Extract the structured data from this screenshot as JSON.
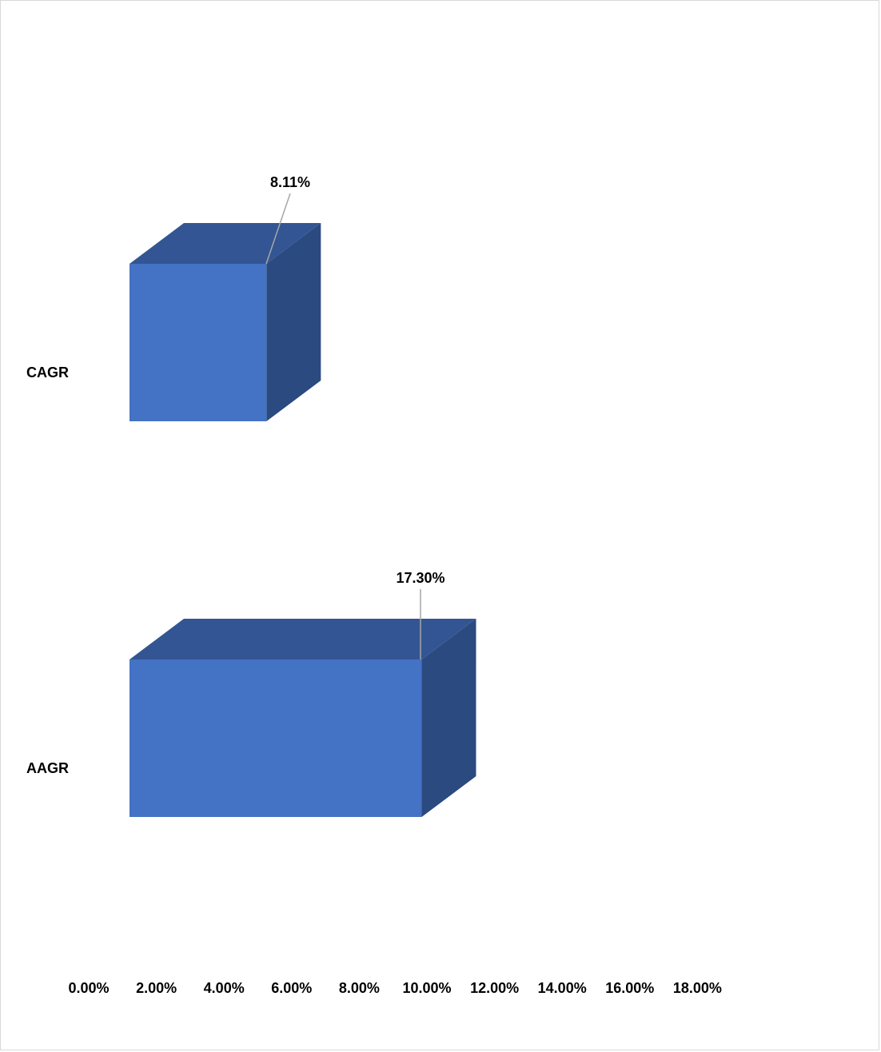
{
  "chart_data": {
    "type": "bar",
    "orientation": "horizontal",
    "three_d": true,
    "categories": [
      "CAGR",
      "AAGR"
    ],
    "values": [
      8.11,
      17.3
    ],
    "data_labels": [
      "8.11%",
      "17.30%"
    ],
    "xlim": [
      0,
      18
    ],
    "xticks": [
      0,
      2,
      4,
      6,
      8,
      10,
      12,
      14,
      16,
      18
    ],
    "xtick_labels": [
      "0.00%",
      "2.00%",
      "4.00%",
      "6.00%",
      "8.00%",
      "10.00%",
      "12.00%",
      "14.00%",
      "16.00%",
      "18.00%"
    ],
    "grid": false,
    "legend": "none",
    "colors": {
      "front": "#4472c4",
      "top": "#335593",
      "side": "#2a4a80",
      "leader": "#a6a6a6"
    }
  }
}
